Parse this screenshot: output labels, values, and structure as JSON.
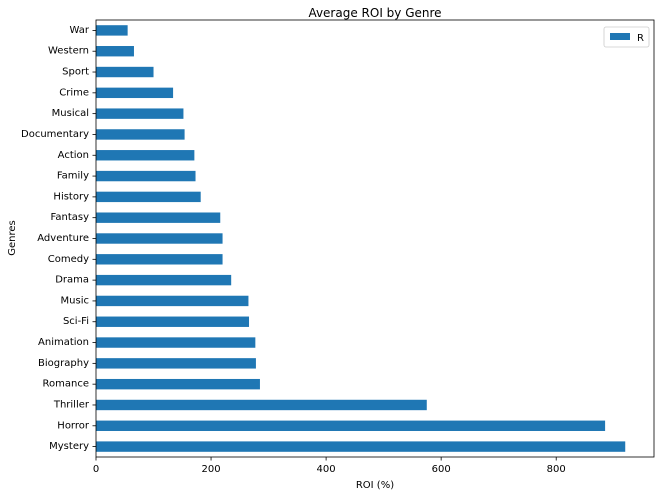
{
  "chart_data": {
    "type": "bar",
    "orientation": "horizontal",
    "title": "Average ROI by Genre",
    "xlabel": "ROI (%)",
    "ylabel": "Genres",
    "categories": [
      "Mystery",
      "Horror",
      "Thriller",
      "Romance",
      "Biography",
      "Animation",
      "Sci-Fi",
      "Music",
      "Drama",
      "Comedy",
      "Adventure",
      "Fantasy",
      "History",
      "Family",
      "Action",
      "Documentary",
      "Musical",
      "Crime",
      "Sport",
      "Western",
      "War"
    ],
    "series": [
      {
        "name": "R",
        "color": "#1f77b4",
        "values": [
          920,
          885,
          575,
          285,
          278,
          277,
          266,
          265,
          235,
          220,
          220,
          216,
          182,
          173,
          171,
          154,
          152,
          134,
          100,
          66,
          55
        ]
      }
    ],
    "xlim": [
      0,
      970
    ],
    "xticks": [
      0,
      200,
      400,
      600,
      800
    ],
    "grid": false,
    "legend": {
      "position": "top-right",
      "entries": [
        "R"
      ]
    }
  }
}
